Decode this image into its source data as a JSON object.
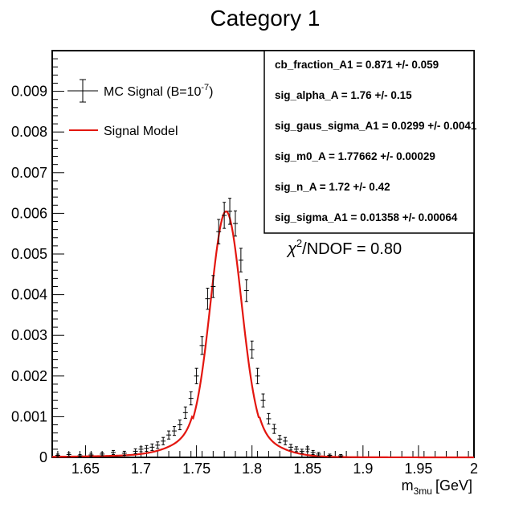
{
  "chart_data": {
    "type": "scatter",
    "title": "Category 1",
    "xlabel": "m",
    "xlabel_sub": "3mu",
    "xlabel_unit": "[GeV]",
    "ylabel": "",
    "xlim": [
      1.62,
      2.0
    ],
    "ylim": [
      0,
      0.01
    ],
    "x_ticks": [
      1.65,
      1.7,
      1.75,
      1.8,
      1.85,
      1.9,
      1.95,
      2.0
    ],
    "x_tick_labels": [
      "1.65",
      "1.7",
      "1.75",
      "1.8",
      "1.85",
      "1.9",
      "1.95",
      "2"
    ],
    "y_ticks": [
      0,
      0.001,
      0.002,
      0.003,
      0.004,
      0.005,
      0.006,
      0.007,
      0.008,
      0.009
    ],
    "y_tick_labels": [
      "0",
      "0.001",
      "0.002",
      "0.003",
      "0.004",
      "0.005",
      "0.006",
      "0.007",
      "0.008",
      "0.009"
    ],
    "grid": false,
    "legend_position": "top-left",
    "series": [
      {
        "name": "MC Signal (B=10",
        "name_sup": "-7",
        "name_end": ")",
        "type": "errorbar",
        "color": "#000000",
        "x": [
          1.625,
          1.635,
          1.645,
          1.655,
          1.665,
          1.675,
          1.685,
          1.695,
          1.7,
          1.705,
          1.71,
          1.715,
          1.72,
          1.725,
          1.73,
          1.735,
          1.74,
          1.745,
          1.75,
          1.755,
          1.76,
          1.765,
          1.77,
          1.775,
          1.78,
          1.785,
          1.79,
          1.795,
          1.8,
          1.805,
          1.81,
          1.815,
          1.82,
          1.825,
          1.83,
          1.835,
          1.84,
          1.845,
          1.85,
          1.855,
          1.86,
          1.87,
          1.88
        ],
        "y": [
          5e-05,
          7e-05,
          4e-05,
          6e-05,
          8e-05,
          0.00012,
          0.0001,
          0.00015,
          0.0002,
          0.00022,
          0.00025,
          0.0003,
          0.0004,
          0.00055,
          0.00065,
          0.0008,
          0.0011,
          0.00145,
          0.002,
          0.00275,
          0.0039,
          0.0042,
          0.00555,
          0.00595,
          0.00605,
          0.00575,
          0.00485,
          0.0041,
          0.00265,
          0.002,
          0.0014,
          0.00095,
          0.0007,
          0.00045,
          0.0004,
          0.00025,
          0.0002,
          0.00015,
          0.0002,
          0.00012,
          8e-05,
          5e-05,
          4e-05
        ],
        "yerr": [
          3e-05,
          4e-05,
          3e-05,
          4e-05,
          4e-05,
          5e-05,
          5e-05,
          6e-05,
          6e-05,
          7e-05,
          8e-05,
          8e-05,
          9e-05,
          0.0001,
          0.00011,
          0.00012,
          0.00014,
          0.00016,
          0.00019,
          0.00022,
          0.00026,
          0.00027,
          0.0003,
          0.00032,
          0.00032,
          0.00031,
          0.00029,
          0.00027,
          0.00021,
          0.00019,
          0.00016,
          0.00013,
          0.00011,
          9e-05,
          9e-05,
          7e-05,
          6e-05,
          5e-05,
          6e-05,
          5e-05,
          4e-05,
          3e-05,
          3e-05
        ]
      },
      {
        "name": "Signal Model",
        "type": "line",
        "color": "#e3160f"
      }
    ],
    "fit_parameters": [
      "cb_fraction_A1 =  0.871 +/- 0.059",
      "sig_alpha_A =  1.76 +/- 0.15",
      "sig_gaus_sigma_A1 =  0.0299 +/- 0.0041",
      "sig_m0_A =  1.77662 +/- 0.00029",
      "sig_n_A =  1.72 +/- 0.42",
      "sig_sigma_A1 =  0.01358 +/- 0.00064"
    ],
    "chi2": {
      "symbol": "χ",
      "sup": "2",
      "rest": "/NDOF = 0.80"
    }
  }
}
